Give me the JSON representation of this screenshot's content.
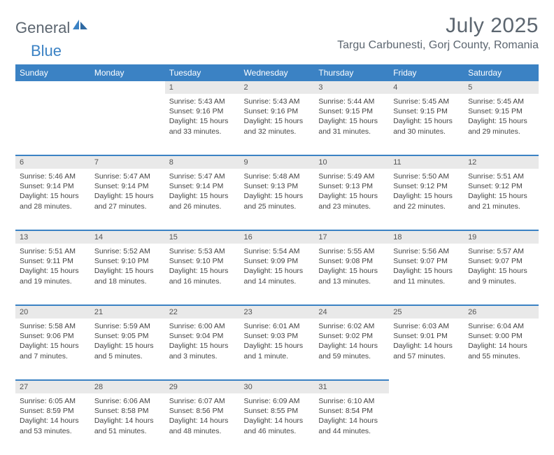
{
  "branding": {
    "logo_general": "General",
    "logo_blue": "Blue",
    "logo_colors": {
      "general": "#5c6670",
      "blue": "#3b82c4"
    }
  },
  "header": {
    "month_title": "July 2025",
    "location": "Targu Carbunesti, Gorj County, Romania"
  },
  "calendar": {
    "header_bg": "#3b82c4",
    "header_fg": "#ffffff",
    "daynum_bg": "#e9e9e9",
    "divider_color": "#3b82c4",
    "weekdays": [
      "Sunday",
      "Monday",
      "Tuesday",
      "Wednesday",
      "Thursday",
      "Friday",
      "Saturday"
    ],
    "weeks": [
      [
        null,
        null,
        {
          "n": "1",
          "sunrise": "Sunrise: 5:43 AM",
          "sunset": "Sunset: 9:16 PM",
          "day1": "Daylight: 15 hours",
          "day2": "and 33 minutes."
        },
        {
          "n": "2",
          "sunrise": "Sunrise: 5:43 AM",
          "sunset": "Sunset: 9:16 PM",
          "day1": "Daylight: 15 hours",
          "day2": "and 32 minutes."
        },
        {
          "n": "3",
          "sunrise": "Sunrise: 5:44 AM",
          "sunset": "Sunset: 9:15 PM",
          "day1": "Daylight: 15 hours",
          "day2": "and 31 minutes."
        },
        {
          "n": "4",
          "sunrise": "Sunrise: 5:45 AM",
          "sunset": "Sunset: 9:15 PM",
          "day1": "Daylight: 15 hours",
          "day2": "and 30 minutes."
        },
        {
          "n": "5",
          "sunrise": "Sunrise: 5:45 AM",
          "sunset": "Sunset: 9:15 PM",
          "day1": "Daylight: 15 hours",
          "day2": "and 29 minutes."
        }
      ],
      [
        {
          "n": "6",
          "sunrise": "Sunrise: 5:46 AM",
          "sunset": "Sunset: 9:14 PM",
          "day1": "Daylight: 15 hours",
          "day2": "and 28 minutes."
        },
        {
          "n": "7",
          "sunrise": "Sunrise: 5:47 AM",
          "sunset": "Sunset: 9:14 PM",
          "day1": "Daylight: 15 hours",
          "day2": "and 27 minutes."
        },
        {
          "n": "8",
          "sunrise": "Sunrise: 5:47 AM",
          "sunset": "Sunset: 9:14 PM",
          "day1": "Daylight: 15 hours",
          "day2": "and 26 minutes."
        },
        {
          "n": "9",
          "sunrise": "Sunrise: 5:48 AM",
          "sunset": "Sunset: 9:13 PM",
          "day1": "Daylight: 15 hours",
          "day2": "and 25 minutes."
        },
        {
          "n": "10",
          "sunrise": "Sunrise: 5:49 AM",
          "sunset": "Sunset: 9:13 PM",
          "day1": "Daylight: 15 hours",
          "day2": "and 23 minutes."
        },
        {
          "n": "11",
          "sunrise": "Sunrise: 5:50 AM",
          "sunset": "Sunset: 9:12 PM",
          "day1": "Daylight: 15 hours",
          "day2": "and 22 minutes."
        },
        {
          "n": "12",
          "sunrise": "Sunrise: 5:51 AM",
          "sunset": "Sunset: 9:12 PM",
          "day1": "Daylight: 15 hours",
          "day2": "and 21 minutes."
        }
      ],
      [
        {
          "n": "13",
          "sunrise": "Sunrise: 5:51 AM",
          "sunset": "Sunset: 9:11 PM",
          "day1": "Daylight: 15 hours",
          "day2": "and 19 minutes."
        },
        {
          "n": "14",
          "sunrise": "Sunrise: 5:52 AM",
          "sunset": "Sunset: 9:10 PM",
          "day1": "Daylight: 15 hours",
          "day2": "and 18 minutes."
        },
        {
          "n": "15",
          "sunrise": "Sunrise: 5:53 AM",
          "sunset": "Sunset: 9:10 PM",
          "day1": "Daylight: 15 hours",
          "day2": "and 16 minutes."
        },
        {
          "n": "16",
          "sunrise": "Sunrise: 5:54 AM",
          "sunset": "Sunset: 9:09 PM",
          "day1": "Daylight: 15 hours",
          "day2": "and 14 minutes."
        },
        {
          "n": "17",
          "sunrise": "Sunrise: 5:55 AM",
          "sunset": "Sunset: 9:08 PM",
          "day1": "Daylight: 15 hours",
          "day2": "and 13 minutes."
        },
        {
          "n": "18",
          "sunrise": "Sunrise: 5:56 AM",
          "sunset": "Sunset: 9:07 PM",
          "day1": "Daylight: 15 hours",
          "day2": "and 11 minutes."
        },
        {
          "n": "19",
          "sunrise": "Sunrise: 5:57 AM",
          "sunset": "Sunset: 9:07 PM",
          "day1": "Daylight: 15 hours",
          "day2": "and 9 minutes."
        }
      ],
      [
        {
          "n": "20",
          "sunrise": "Sunrise: 5:58 AM",
          "sunset": "Sunset: 9:06 PM",
          "day1": "Daylight: 15 hours",
          "day2": "and 7 minutes."
        },
        {
          "n": "21",
          "sunrise": "Sunrise: 5:59 AM",
          "sunset": "Sunset: 9:05 PM",
          "day1": "Daylight: 15 hours",
          "day2": "and 5 minutes."
        },
        {
          "n": "22",
          "sunrise": "Sunrise: 6:00 AM",
          "sunset": "Sunset: 9:04 PM",
          "day1": "Daylight: 15 hours",
          "day2": "and 3 minutes."
        },
        {
          "n": "23",
          "sunrise": "Sunrise: 6:01 AM",
          "sunset": "Sunset: 9:03 PM",
          "day1": "Daylight: 15 hours",
          "day2": "and 1 minute."
        },
        {
          "n": "24",
          "sunrise": "Sunrise: 6:02 AM",
          "sunset": "Sunset: 9:02 PM",
          "day1": "Daylight: 14 hours",
          "day2": "and 59 minutes."
        },
        {
          "n": "25",
          "sunrise": "Sunrise: 6:03 AM",
          "sunset": "Sunset: 9:01 PM",
          "day1": "Daylight: 14 hours",
          "day2": "and 57 minutes."
        },
        {
          "n": "26",
          "sunrise": "Sunrise: 6:04 AM",
          "sunset": "Sunset: 9:00 PM",
          "day1": "Daylight: 14 hours",
          "day2": "and 55 minutes."
        }
      ],
      [
        {
          "n": "27",
          "sunrise": "Sunrise: 6:05 AM",
          "sunset": "Sunset: 8:59 PM",
          "day1": "Daylight: 14 hours",
          "day2": "and 53 minutes."
        },
        {
          "n": "28",
          "sunrise": "Sunrise: 6:06 AM",
          "sunset": "Sunset: 8:58 PM",
          "day1": "Daylight: 14 hours",
          "day2": "and 51 minutes."
        },
        {
          "n": "29",
          "sunrise": "Sunrise: 6:07 AM",
          "sunset": "Sunset: 8:56 PM",
          "day1": "Daylight: 14 hours",
          "day2": "and 48 minutes."
        },
        {
          "n": "30",
          "sunrise": "Sunrise: 6:09 AM",
          "sunset": "Sunset: 8:55 PM",
          "day1": "Daylight: 14 hours",
          "day2": "and 46 minutes."
        },
        {
          "n": "31",
          "sunrise": "Sunrise: 6:10 AM",
          "sunset": "Sunset: 8:54 PM",
          "day1": "Daylight: 14 hours",
          "day2": "and 44 minutes."
        },
        null,
        null
      ]
    ]
  }
}
